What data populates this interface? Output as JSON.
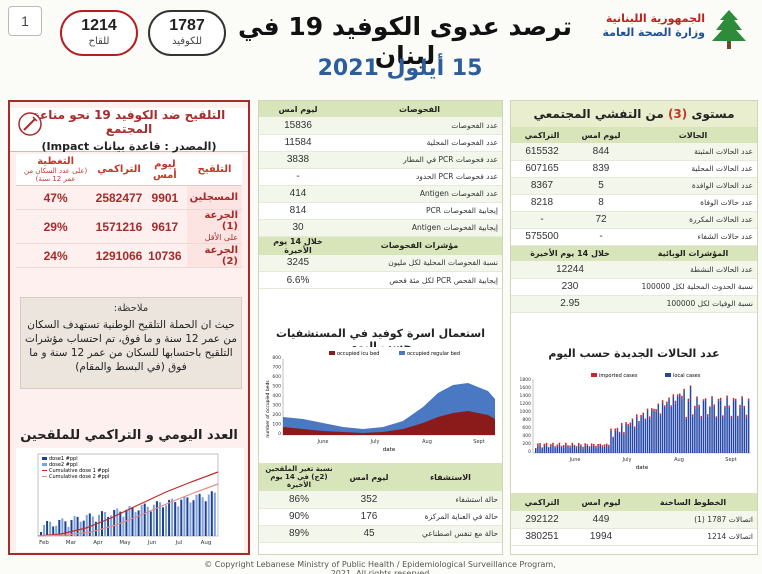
{
  "header": {
    "page_number": "1",
    "title": "ترصد عدوى الكوفيد 19 في لبنان",
    "date": "15 أيلول 2021",
    "ministry_line1": "الجمهورية اللبنانية",
    "ministry_line2": "وزارة الصحة العامة",
    "hotline_covid": {
      "value": "1787",
      "label": "للكوفيد"
    },
    "hotline_vaccine": {
      "value": "1214",
      "label": "للقاح"
    }
  },
  "vaccination": {
    "title": "التلقيح ضد الكوفيد 19 نحو مناعة المجتمع",
    "source": "(المصدر : قاعدة بيانات Impact)",
    "columns": [
      "التلقيح",
      "ليوم أمس",
      "التراكمي",
      "التغطية"
    ],
    "coverage_note": "(على عدد السكان من عمر 12 سنة)",
    "rows": [
      {
        "label": "المسجلين",
        "daily": "9901",
        "cumulative": "2582477",
        "coverage": "47%"
      },
      {
        "label": "الجرعة (1)",
        "sub": "على الأقل",
        "daily": "9617",
        "cumulative": "1571216",
        "coverage": "29%"
      },
      {
        "label": "الجرعة (2)",
        "daily": "10736",
        "cumulative": "1291066",
        "coverage": "24%"
      }
    ],
    "note_heading": "ملاحظة:",
    "note_text": "حيث ان الحملة التلقيح الوطنية تستهدف السكان من عمر 12 سنة و ما فوق، تم احتساب مؤشرات التلقيح باحتسابها للسكان من عمر 12 سنة و ما فوق (في البسط والمقام)"
  },
  "vacc_chart": {
    "title": "العدد اليومي و التراكمي للملقحين",
    "legend": [
      "dose1 #ppl",
      "dose2 #ppl",
      "Cumulative dose 1 #ppl",
      "Cumulative dose 2 #ppl"
    ],
    "x_ticks": [
      "Feb",
      "Mar",
      "Apr",
      "May",
      "Jun",
      "Jul",
      "Aug"
    ]
  },
  "tests": {
    "col_header": "الفحوصات",
    "col_value": "ليوم امس",
    "rows": [
      {
        "label": "عدد الفحوصات",
        "value": "15836"
      },
      {
        "label": "عدد الفحوصات المحلية",
        "value": "11584"
      },
      {
        "label": "عدد فحوصات PCR في المطار",
        "value": "3838"
      },
      {
        "label": "عدد فحوصات PCR الحدود",
        "value": "-"
      },
      {
        "label": "عدد الفحوصات Antigen",
        "value": "414"
      },
      {
        "label": "إيجابية الفحوصات PCR",
        "value": "814"
      },
      {
        "label": "إيجابية الفحوصات Antigen",
        "value": "30"
      }
    ],
    "indicators_header": "مؤشرات الفحوصات",
    "indicators_period": "خلال 14 يوم الأخيرة",
    "indicators": [
      {
        "label": "نسبة الفحوصات المحلية لكل مليون",
        "value": "3245"
      },
      {
        "label": "إيجابية الفحص PCR لكل مئة فحص",
        "value": "6.6%"
      }
    ]
  },
  "hospital_chart": {
    "title": "استعمال اسرة كوفيد في المستشفيات حسب اليوم",
    "legend": [
      "occupied icu bed",
      "occupied regular bed"
    ],
    "ylabel": "number of occupied beds",
    "xlabel": "date",
    "x_ticks": [
      "June",
      "July",
      "Aug",
      "Sept"
    ],
    "y_ticks": [
      "0",
      "100",
      "200",
      "300",
      "400",
      "500",
      "600",
      "700",
      "800"
    ]
  },
  "hospitalized": {
    "headers": [
      "الاستشفاء",
      "ليوم امس",
      "نسبة تغير الملقحين (2ج) في 14 يوم الأخيرة"
    ],
    "rows": [
      {
        "label": "حالة استشفاء",
        "value": "352",
        "pct": "86%"
      },
      {
        "label": "حالة في العناية المركزة",
        "value": "176",
        "pct": "90%"
      },
      {
        "label": "حالة مع تنفس اصطناعي",
        "value": "45",
        "pct": "89%"
      }
    ]
  },
  "community": {
    "title_pre": "مستوى",
    "title_level": "(3)",
    "title_post": "من التفشي المجتمعي",
    "headers": [
      "الحالات",
      "ليوم امس",
      "التراكمي"
    ],
    "rows": [
      {
        "label": "عدد الحالات المثبتة",
        "daily": "844",
        "cumulative": "615532"
      },
      {
        "label": "عدد الحالات المحلية",
        "daily": "839",
        "cumulative": "607165"
      },
      {
        "label": "عدد الحالات الوافدة",
        "daily": "5",
        "cumulative": "8367"
      },
      {
        "label": "عدد حالات الوفاة",
        "daily": "8",
        "cumulative": "8218"
      },
      {
        "label": "عدد الحالات المكررة",
        "daily": "72",
        "cumulative": "-"
      },
      {
        "label": "عدد حالات الشفاء",
        "daily": "-",
        "cumulative": "575500"
      }
    ],
    "indicators_header": "المؤشرات الوبائية",
    "indicators_period": "خلال 14 يوم الأخيرة",
    "indicators": [
      {
        "label": "عدد الحالات النشطة",
        "value": "12244"
      },
      {
        "label": "نسبة الحدوث المحلية لكل 100000",
        "value": "230"
      },
      {
        "label": "نسبة الوفيات لكل 100000",
        "value": "2.95"
      }
    ]
  },
  "cases_chart": {
    "title": "عدد الحالات الجديدة حسب اليوم",
    "legend": [
      "imported cases",
      "local cases"
    ],
    "xlabel": "date",
    "x_ticks": [
      "June",
      "July",
      "Aug",
      "Sept"
    ],
    "y_ticks": [
      "0",
      "200",
      "400",
      "600",
      "800",
      "1000",
      "1200",
      "1400",
      "1600",
      "1800"
    ]
  },
  "hotlines": {
    "headers": [
      "الخطوط الساخنة",
      "ليوم امس",
      "التراكمي"
    ],
    "rows": [
      {
        "label": "اتصالات 1787 (1)",
        "daily": "449",
        "cumulative": "292122"
      },
      {
        "label": "اتصالات 1214",
        "daily": "1994",
        "cumulative": "380251"
      }
    ]
  },
  "footer": "© Copyright Lebanese Ministry of Public Health / Epidemiological Surveillance Program, 2021. All rights reserved",
  "colors": {
    "accent_red": "#a82b2b",
    "accent_blue": "#2d5d9a",
    "table_head": "#d8e4b9",
    "icu": "#8b1a1a",
    "regular": "#4a78c2",
    "local_cases": "#2346a8",
    "imported_cases": "#c62828"
  }
}
